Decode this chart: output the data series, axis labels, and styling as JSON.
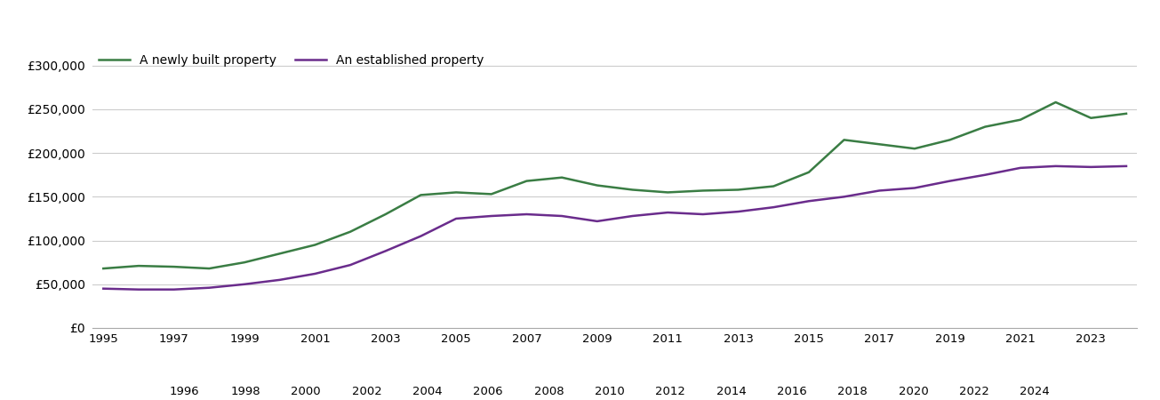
{
  "years": [
    1995,
    1996,
    1997,
    1998,
    1999,
    2000,
    2001,
    2002,
    2003,
    2004,
    2005,
    2006,
    2007,
    2008,
    2009,
    2010,
    2011,
    2012,
    2013,
    2014,
    2015,
    2016,
    2017,
    2018,
    2019,
    2020,
    2021,
    2022,
    2023,
    2024
  ],
  "new_build": [
    68000,
    71000,
    70000,
    68000,
    75000,
    85000,
    95000,
    110000,
    130000,
    152000,
    155000,
    153000,
    168000,
    172000,
    163000,
    158000,
    155000,
    157000,
    158000,
    162000,
    178000,
    215000,
    210000,
    205000,
    215000,
    230000,
    238000,
    258000,
    240000,
    245000
  ],
  "established": [
    45000,
    44000,
    44000,
    46000,
    50000,
    55000,
    62000,
    72000,
    88000,
    105000,
    125000,
    128000,
    130000,
    128000,
    122000,
    128000,
    132000,
    130000,
    133000,
    138000,
    145000,
    150000,
    157000,
    160000,
    168000,
    175000,
    183000,
    185000,
    184000,
    185000
  ],
  "new_build_color": "#3a7d44",
  "established_color": "#6a2c8c",
  "legend_new": "A newly built property",
  "legend_est": "An established property",
  "ylim": [
    0,
    320000
  ],
  "ytick_vals": [
    0,
    50000,
    100000,
    150000,
    200000,
    250000,
    300000
  ],
  "background_color": "#ffffff",
  "grid_color": "#cccccc",
  "line_width": 1.8
}
